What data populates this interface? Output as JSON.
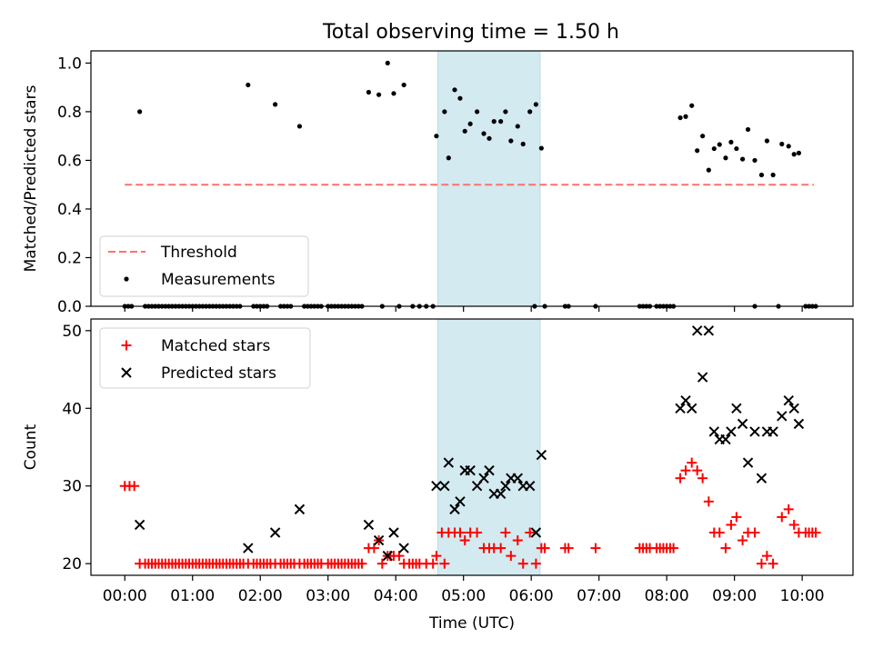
{
  "figure": {
    "title": "Total observing time = 1.50 h"
  },
  "colors": {
    "threshold": "#ff6f6f",
    "measurement": "#000000",
    "matched": "#ff0000",
    "predicted": "#000000",
    "highlight_fill": "#d3eaf0",
    "highlight_stroke": "#b7dde6"
  },
  "chart_data": [
    {
      "type": "scatter",
      "panel": "top",
      "title": "Total observing time = 1.50 h",
      "ylabel": "Matched/Predicted stars",
      "xlabel": "",
      "xlim": [
        -0.5,
        10.75
      ],
      "ylim": [
        0,
        1.05
      ],
      "yticks": [
        0.0,
        0.2,
        0.4,
        0.6,
        0.8,
        1.0
      ],
      "ytick_labels": [
        "0.0",
        "0.2",
        "0.4",
        "0.6",
        "0.8",
        "1.0"
      ],
      "grid": false,
      "legend_position": "lower left",
      "highlight_span": [
        4.62,
        6.13
      ],
      "series": [
        {
          "name": "Threshold",
          "kind": "dashed-line",
          "x": [
            0.0,
            10.17
          ],
          "y": [
            0.5,
            0.5
          ]
        },
        {
          "name": "Measurements",
          "kind": "dot",
          "x": [
            0.22,
            1.82,
            2.22,
            2.58,
            3.6,
            3.75,
            3.88,
            3.97,
            4.12,
            4.6,
            4.72,
            4.78,
            4.87,
            4.95,
            5.02,
            5.1,
            5.2,
            5.3,
            5.38,
            5.45,
            5.55,
            5.62,
            5.7,
            5.8,
            5.88,
            5.98,
            6.07,
            6.15,
            8.2,
            8.28,
            8.37,
            8.45,
            8.53,
            8.62,
            8.7,
            8.78,
            8.87,
            8.95,
            9.03,
            9.12,
            9.2,
            9.3,
            9.4,
            9.48,
            9.57,
            9.7,
            9.8,
            9.88,
            9.95
          ],
          "y": [
            0.8,
            0.91,
            0.83,
            0.74,
            0.88,
            0.87,
            1.0,
            0.875,
            0.91,
            0.7,
            0.8,
            0.61,
            0.89,
            0.855,
            0.72,
            0.75,
            0.8,
            0.71,
            0.69,
            0.76,
            0.76,
            0.8,
            0.68,
            0.74,
            0.667,
            0.8,
            0.83,
            0.65,
            0.775,
            0.78,
            0.825,
            0.64,
            0.7,
            0.56,
            0.648,
            0.665,
            0.61,
            0.675,
            0.648,
            0.605,
            0.727,
            0.6,
            0.54,
            0.68,
            0.54,
            0.667,
            0.658,
            0.625,
            0.63
          ]
        },
        {
          "name": "",
          "kind": "dot",
          "x": [
            0.0,
            0.05,
            0.1,
            0.3,
            0.35,
            0.4,
            0.45,
            0.5,
            0.55,
            0.6,
            0.65,
            0.7,
            0.75,
            0.8,
            0.85,
            0.9,
            0.95,
            1.0,
            1.05,
            1.1,
            1.15,
            1.2,
            1.25,
            1.3,
            1.35,
            1.4,
            1.45,
            1.5,
            1.55,
            1.6,
            1.65,
            1.7,
            1.9,
            1.95,
            2.0,
            2.05,
            2.1,
            2.3,
            2.35,
            2.4,
            2.45,
            2.65,
            2.7,
            2.75,
            2.8,
            2.85,
            2.9,
            3.0,
            3.05,
            3.1,
            3.15,
            3.2,
            3.25,
            3.3,
            3.35,
            3.4,
            3.45,
            3.5,
            3.8,
            4.05,
            4.25,
            4.35,
            4.45,
            4.55,
            6.05,
            6.2,
            6.5,
            6.55,
            6.95,
            7.6,
            7.65,
            7.7,
            7.75,
            7.85,
            7.9,
            7.95,
            8.0,
            8.05,
            8.1,
            9.3,
            9.65,
            10.05,
            10.1,
            10.15,
            10.2
          ],
          "y": [
            0,
            0,
            0,
            0,
            0,
            0,
            0,
            0,
            0,
            0,
            0,
            0,
            0,
            0,
            0,
            0,
            0,
            0,
            0,
            0,
            0,
            0,
            0,
            0,
            0,
            0,
            0,
            0,
            0,
            0,
            0,
            0,
            0,
            0,
            0,
            0,
            0,
            0,
            0,
            0,
            0,
            0,
            0,
            0,
            0,
            0,
            0,
            0,
            0,
            0,
            0,
            0,
            0,
            0,
            0,
            0,
            0,
            0,
            0,
            0,
            0,
            0,
            0,
            0,
            0,
            0,
            0,
            0,
            0,
            0,
            0,
            0,
            0,
            0,
            0,
            0,
            0,
            0,
            0,
            0,
            0,
            0,
            0,
            0,
            0
          ]
        }
      ],
      "legend": [
        "Threshold",
        "Measurements"
      ]
    },
    {
      "type": "scatter",
      "panel": "bottom",
      "title": "",
      "ylabel": "Count",
      "xlabel": "Time (UTC)",
      "xlim": [
        -0.5,
        10.75
      ],
      "ylim": [
        18.5,
        51.5
      ],
      "xticks": [
        0,
        1,
        2,
        3,
        4,
        5,
        6,
        7,
        8,
        9,
        10
      ],
      "xtick_labels": [
        "00:00",
        "01:00",
        "02:00",
        "03:00",
        "04:00",
        "05:00",
        "06:00",
        "07:00",
        "08:00",
        "09:00",
        "10:00"
      ],
      "yticks": [
        20,
        30,
        40,
        50
      ],
      "ytick_labels": [
        "20",
        "30",
        "40",
        "50"
      ],
      "grid": false,
      "legend_position": "upper left",
      "highlight_span": [
        4.62,
        6.13
      ],
      "series": [
        {
          "name": "Matched stars",
          "marker": "plus",
          "x": [
            0.0,
            0.07,
            0.14,
            0.22,
            0.3,
            0.35,
            0.4,
            0.45,
            0.5,
            0.55,
            0.6,
            0.65,
            0.7,
            0.75,
            0.8,
            0.85,
            0.9,
            0.95,
            1.0,
            1.05,
            1.1,
            1.15,
            1.2,
            1.25,
            1.3,
            1.35,
            1.4,
            1.45,
            1.5,
            1.55,
            1.6,
            1.65,
            1.7,
            1.75,
            1.82,
            1.9,
            1.95,
            2.0,
            2.05,
            2.1,
            2.15,
            2.22,
            2.3,
            2.35,
            2.4,
            2.45,
            2.5,
            2.58,
            2.65,
            2.7,
            2.75,
            2.8,
            2.85,
            2.9,
            3.0,
            3.05,
            3.1,
            3.15,
            3.2,
            3.25,
            3.3,
            3.35,
            3.4,
            3.45,
            3.5,
            3.6,
            3.68,
            3.75,
            3.8,
            3.88,
            3.92,
            3.97,
            4.05,
            4.12,
            4.2,
            4.25,
            4.3,
            4.35,
            4.45,
            4.55,
            4.6,
            4.68,
            4.72,
            4.78,
            4.87,
            4.95,
            5.02,
            5.1,
            5.2,
            5.3,
            5.38,
            5.45,
            5.55,
            5.62,
            5.7,
            5.8,
            5.88,
            5.98,
            6.07,
            6.15,
            6.2,
            6.5,
            6.55,
            6.95,
            7.6,
            7.65,
            7.7,
            7.75,
            7.85,
            7.9,
            7.95,
            8.0,
            8.05,
            8.1,
            8.2,
            8.28,
            8.37,
            8.45,
            8.53,
            8.62,
            8.7,
            8.78,
            8.87,
            8.95,
            9.03,
            9.12,
            9.2,
            9.3,
            9.4,
            9.48,
            9.57,
            9.7,
            9.8,
            9.88,
            9.95,
            10.05,
            10.1,
            10.15,
            10.2
          ],
          "y": [
            30,
            30,
            30,
            20,
            20,
            20,
            20,
            20,
            20,
            20,
            20,
            20,
            20,
            20,
            20,
            20,
            20,
            20,
            20,
            20,
            20,
            20,
            20,
            20,
            20,
            20,
            20,
            20,
            20,
            20,
            20,
            20,
            20,
            20,
            20,
            20,
            20,
            20,
            20,
            20,
            20,
            20,
            20,
            20,
            20,
            20,
            20,
            20,
            20,
            20,
            20,
            20,
            20,
            20,
            20,
            20,
            20,
            20,
            20,
            20,
            20,
            20,
            20,
            20,
            20,
            22,
            22,
            23,
            20,
            21,
            21,
            21,
            21,
            20,
            20,
            20,
            20,
            20,
            20,
            20,
            21,
            24,
            20,
            24,
            24,
            24,
            23,
            24,
            24,
            22,
            22,
            22,
            22,
            24,
            21,
            23,
            20,
            24,
            20,
            22,
            22,
            22,
            22,
            22,
            22,
            22,
            22,
            22,
            22,
            22,
            22,
            22,
            22,
            22,
            31,
            32,
            33,
            32,
            31,
            28,
            24,
            24,
            22,
            25,
            26,
            23,
            24,
            24,
            20,
            21,
            20,
            26,
            27,
            25,
            24,
            24,
            24,
            24,
            24
          ]
        },
        {
          "name": "Predicted stars",
          "marker": "x",
          "x": [
            0.22,
            1.82,
            2.22,
            2.58,
            3.6,
            3.75,
            3.88,
            3.97,
            4.12,
            4.6,
            4.72,
            4.78,
            4.87,
            4.95,
            5.02,
            5.1,
            5.2,
            5.3,
            5.38,
            5.45,
            5.55,
            5.62,
            5.7,
            5.8,
            5.88,
            5.98,
            6.07,
            6.15,
            8.2,
            8.28,
            8.37,
            8.45,
            8.53,
            8.62,
            8.7,
            8.78,
            8.87,
            8.95,
            9.03,
            9.12,
            9.2,
            9.3,
            9.4,
            9.48,
            9.57,
            9.7,
            9.8,
            9.88,
            9.95
          ],
          "y": [
            25,
            22,
            24,
            27,
            25,
            23,
            21,
            24,
            22,
            30,
            30,
            33,
            27,
            28,
            32,
            32,
            30,
            31,
            32,
            29,
            29,
            30,
            31,
            31,
            30,
            30,
            24,
            34,
            40,
            41,
            40,
            50,
            44,
            50,
            37,
            36,
            36,
            37,
            40,
            38,
            33,
            37,
            31,
            37,
            37,
            39,
            41,
            40,
            38
          ]
        }
      ],
      "legend": [
        "Matched stars",
        "Predicted stars"
      ]
    }
  ]
}
